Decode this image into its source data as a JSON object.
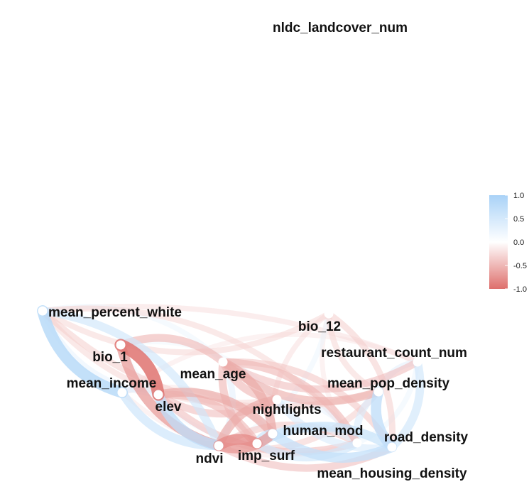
{
  "chart_data": {
    "type": "network",
    "title": "",
    "legend": {
      "placement": "right",
      "ticks": [
        "1.0",
        "0.5",
        "0.0",
        "-0.5",
        "-1.0"
      ],
      "tick_values": [
        1.0,
        0.5,
        0.0,
        -0.5,
        -1.0
      ],
      "colors": {
        "positive": "#a9d2f7",
        "neutral": "#ffffff",
        "negative": "#de6f6c"
      }
    },
    "nodes": [
      {
        "id": "nldc",
        "label": "nldc_landcover_num"
      },
      {
        "id": "mpw",
        "label": "mean_percent_white"
      },
      {
        "id": "bio12",
        "label": "bio_12"
      },
      {
        "id": "bio1",
        "label": "bio_1"
      },
      {
        "id": "rest",
        "label": "restaurant_count_num"
      },
      {
        "id": "age",
        "label": "mean_age"
      },
      {
        "id": "mpd",
        "label": "mean_pop_density"
      },
      {
        "id": "inc",
        "label": "mean_income"
      },
      {
        "id": "elev",
        "label": "elev"
      },
      {
        "id": "night",
        "label": "nightlights"
      },
      {
        "id": "hmod",
        "label": "human_mod"
      },
      {
        "id": "road",
        "label": "road_density"
      },
      {
        "id": "imp",
        "label": "imp_surf"
      },
      {
        "id": "ndvi",
        "label": "ndvi"
      },
      {
        "id": "mhd",
        "label": "mean_housing_density"
      }
    ],
    "edges": [
      {
        "from": "mpw",
        "to": "inc",
        "r": 0.85
      },
      {
        "from": "mpw",
        "to": "ndvi",
        "r": 0.55
      },
      {
        "from": "mpw",
        "to": "bio12",
        "r": -0.3
      },
      {
        "from": "mpw",
        "to": "rest",
        "r": -0.25
      },
      {
        "from": "mpw",
        "to": "mpd",
        "r": -0.35
      },
      {
        "from": "mpw",
        "to": "mhd",
        "r": -0.3
      },
      {
        "from": "mpw",
        "to": "night",
        "r": -0.3
      },
      {
        "from": "mpw",
        "to": "age",
        "r": 0.25
      },
      {
        "from": "mpw",
        "to": "elev",
        "r": 0.3
      },
      {
        "from": "bio1",
        "to": "elev",
        "r": -0.95
      },
      {
        "from": "bio1",
        "to": "ndvi",
        "r": -0.7
      },
      {
        "from": "bio1",
        "to": "age",
        "r": -0.5
      },
      {
        "from": "bio1",
        "to": "imp",
        "r": 0.2
      },
      {
        "from": "bio1",
        "to": "night",
        "r": 0.2
      },
      {
        "from": "inc",
        "to": "ndvi",
        "r": 0.6
      },
      {
        "from": "inc",
        "to": "elev",
        "r": 0.35
      },
      {
        "from": "inc",
        "to": "mhd",
        "r": -0.2
      },
      {
        "from": "inc",
        "to": "hmod",
        "r": -0.2
      },
      {
        "from": "elev",
        "to": "ndvi",
        "r": 0.75
      },
      {
        "from": "elev",
        "to": "imp",
        "r": -0.5
      },
      {
        "from": "elev",
        "to": "night",
        "r": -0.45
      },
      {
        "from": "elev",
        "to": "hmod",
        "r": -0.6
      },
      {
        "from": "elev",
        "to": "mhd",
        "r": -0.45
      },
      {
        "from": "age",
        "to": "ndvi",
        "r": 0.35
      },
      {
        "from": "age",
        "to": "imp",
        "r": -0.5
      },
      {
        "from": "age",
        "to": "hmod",
        "r": -0.6
      },
      {
        "from": "age",
        "to": "mpd",
        "r": -0.55
      },
      {
        "from": "age",
        "to": "mhd",
        "r": -0.5
      },
      {
        "from": "age",
        "to": "rest",
        "r": -0.45
      },
      {
        "from": "age",
        "to": "road",
        "r": -0.4
      },
      {
        "from": "age",
        "to": "night",
        "r": -0.5
      },
      {
        "from": "ndvi",
        "to": "imp",
        "r": -0.8
      },
      {
        "from": "ndvi",
        "to": "hmod",
        "r": -0.7
      },
      {
        "from": "ndvi",
        "to": "mhd",
        "r": -0.4
      },
      {
        "from": "ndvi",
        "to": "road",
        "r": -0.45
      },
      {
        "from": "ndvi",
        "to": "night",
        "r": -0.6
      },
      {
        "from": "ndvi",
        "to": "mpd",
        "r": -0.35
      },
      {
        "from": "imp",
        "to": "road",
        "r": 0.65
      },
      {
        "from": "imp",
        "to": "mhd",
        "r": 0.55
      },
      {
        "from": "imp",
        "to": "hmod",
        "r": 0.6
      },
      {
        "from": "hmod",
        "to": "road",
        "r": 0.7
      },
      {
        "from": "hmod",
        "to": "mhd",
        "r": 0.4
      },
      {
        "from": "night",
        "to": "road",
        "r": 0.45
      },
      {
        "from": "night",
        "to": "mhd",
        "r": 0.3
      },
      {
        "from": "road",
        "to": "rest",
        "r": 0.55
      },
      {
        "from": "road",
        "to": "mpd",
        "r": 0.75
      },
      {
        "from": "mpd",
        "to": "mhd",
        "r": 0.45
      },
      {
        "from": "mpd",
        "to": "rest",
        "r": 0.35
      },
      {
        "from": "bio12",
        "to": "mhd",
        "r": -0.2
      },
      {
        "from": "bio12",
        "to": "road",
        "r": -0.35
      },
      {
        "from": "bio12",
        "to": "mpd",
        "r": -0.3
      },
      {
        "from": "bio12",
        "to": "ndvi",
        "r": 0.25
      },
      {
        "from": "bio12",
        "to": "hmod",
        "r": -0.25
      },
      {
        "from": "rest",
        "to": "mhd",
        "r": 0.25
      },
      {
        "from": "rest",
        "to": "inc",
        "r": -0.2
      }
    ]
  }
}
